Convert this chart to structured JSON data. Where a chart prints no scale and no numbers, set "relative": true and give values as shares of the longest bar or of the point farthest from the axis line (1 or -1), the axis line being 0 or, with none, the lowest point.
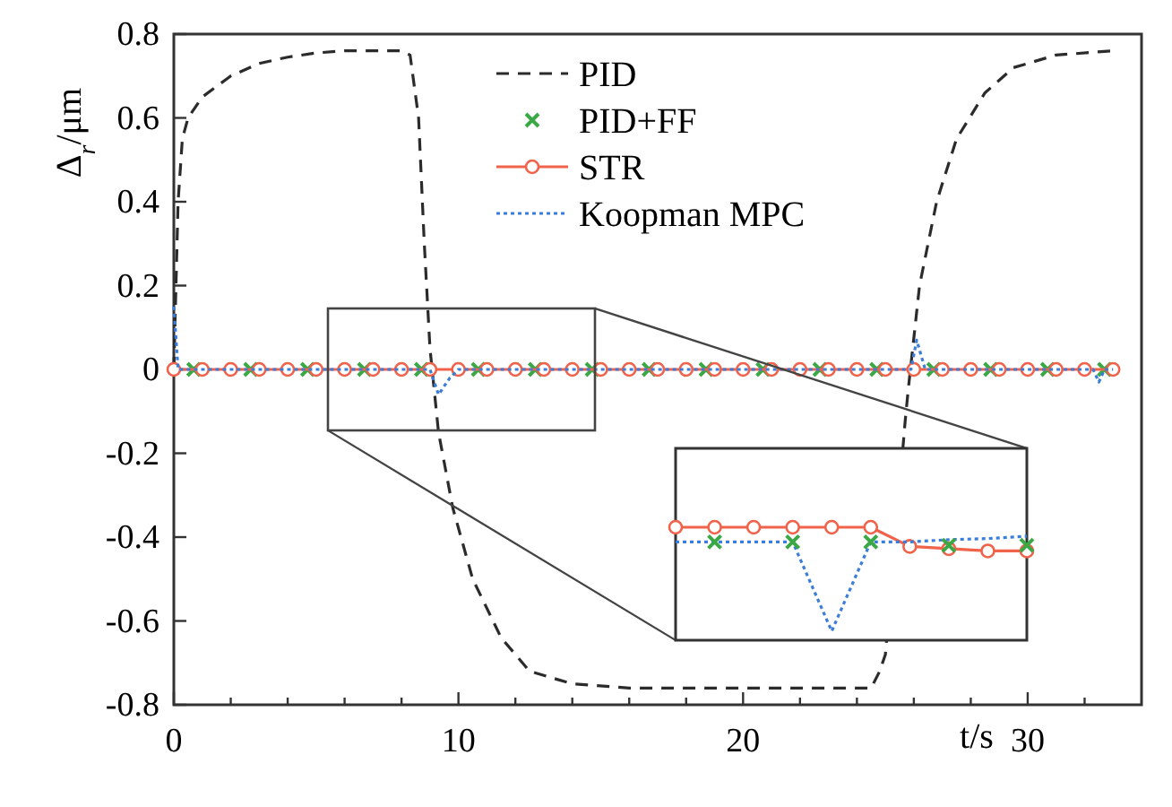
{
  "chart_data": [
    {
      "type": "line",
      "xlabel": "t/s",
      "ylabel": "Δ$_{r}$/μm",
      "xlim": [
        0,
        34
      ],
      "ylim": [
        -0.8,
        0.8
      ],
      "xticks": [
        0,
        {
          "value": 2,
          "label": null
        },
        {
          "value": 4,
          "label": null
        },
        {
          "value": 6,
          "label": null
        },
        {
          "value": 8,
          "label": null
        },
        10,
        {
          "value": 12,
          "label": null
        },
        {
          "value": 14,
          "label": null
        },
        {
          "value": 16,
          "label": null
        },
        {
          "value": 18,
          "label": null
        },
        20,
        {
          "value": 22,
          "label": null
        },
        {
          "value": 24,
          "label": null
        },
        {
          "value": 26,
          "label": null
        },
        {
          "value": 28,
          "label": null
        },
        30,
        {
          "value": 32,
          "label": null
        }
      ],
      "yticks": [
        -0.8,
        -0.6,
        -0.4,
        -0.2,
        0,
        0.2,
        0.4,
        0.6,
        0.8
      ],
      "legend": "top",
      "series": [
        {
          "name": "PID",
          "color": "#2b2b2b",
          "line_style": "dashed",
          "marker": "none",
          "x": [
            0,
            0.15,
            0.3,
            0.5,
            1,
            2,
            3,
            4,
            5,
            6,
            8,
            8.3,
            8.6,
            8.8,
            9,
            9.3,
            9.8,
            10.5,
            11.5,
            12.5,
            14,
            16,
            24.5,
            24.8,
            25,
            25.7,
            25.8,
            26.2,
            26.8,
            27.5,
            28.5,
            29.5,
            31,
            33
          ],
          "values": [
            0,
            0.4,
            0.55,
            0.6,
            0.65,
            0.7,
            0.73,
            0.745,
            0.755,
            0.76,
            0.76,
            0.75,
            0.6,
            0.3,
            0.05,
            -0.15,
            -0.33,
            -0.5,
            -0.64,
            -0.72,
            -0.75,
            -0.76,
            -0.76,
            -0.72,
            -0.68,
            -0.12,
            -0.05,
            0.2,
            0.4,
            0.55,
            0.66,
            0.72,
            0.75,
            0.76
          ]
        },
        {
          "name": "PID+FF",
          "type": "scatter",
          "color": "#3aa845",
          "marker": "cross",
          "x": [
            0.7,
            2.7,
            4.7,
            6.7,
            8.7,
            10.7,
            12.7,
            14.7,
            16.7,
            18.7,
            20.7,
            22.7,
            24.7,
            26.7,
            28.7,
            30.7,
            32.7
          ],
          "values": [
            0,
            0,
            0,
            0,
            0,
            0,
            0,
            0,
            0,
            0,
            0,
            0,
            0,
            0,
            0,
            0,
            0
          ]
        },
        {
          "name": "STR",
          "color": "#f0624a",
          "line_style": "solid",
          "marker": "circle",
          "x": [
            0,
            1,
            2,
            3,
            4,
            5,
            6,
            7,
            8,
            9,
            10,
            11,
            12,
            13,
            14,
            15,
            16,
            17,
            18,
            19,
            20,
            21,
            22,
            23,
            24,
            25,
            26,
            27,
            28,
            29,
            30,
            31,
            32,
            33
          ],
          "values": [
            0,
            0,
            0,
            0,
            0,
            0,
            0,
            0,
            0,
            0,
            0,
            0,
            0,
            0,
            0,
            0,
            0,
            0,
            0,
            0,
            0,
            0,
            0,
            0,
            0,
            0,
            0,
            0,
            0,
            0,
            0,
            0,
            0,
            0
          ]
        },
        {
          "name": "Koopman MPC",
          "color": "#3b7dd8",
          "line_style": "dotted",
          "marker": "none",
          "x": [
            0,
            0.15,
            9,
            9.3,
            9.7,
            10,
            25.9,
            26.1,
            26.4,
            32.3,
            32.5,
            32.7,
            33
          ],
          "values": [
            0.15,
            0,
            0,
            -0.06,
            -0.02,
            0,
            0,
            0.07,
            0,
            0,
            -0.03,
            0,
            0
          ]
        }
      ]
    },
    {
      "type": "line",
      "relative": true,
      "categories": [
        null,
        null,
        null,
        null,
        null,
        null,
        null,
        null,
        null,
        null
      ],
      "series": [
        {
          "color": "#f0624a",
          "line_style": "solid",
          "marker": "circle",
          "values": [
            1,
            1,
            1,
            1,
            1,
            1,
            0.83,
            0.81,
            0.79,
            0.79
          ]
        },
        {
          "color": "#3b7dd8",
          "line_style": "dotted",
          "marker": "none",
          "values": [
            0.87,
            0.87,
            0.87,
            0.87,
            0.08,
            0.87,
            0.87,
            0.89,
            0.9,
            0.92
          ]
        },
        {
          "color": "#3aa845",
          "marker": "cross",
          "line_style": "none",
          "values": [
            null,
            0.87,
            null,
            0.87,
            null,
            0.87,
            null,
            0.84,
            null,
            0.84
          ]
        }
      ]
    }
  ]
}
